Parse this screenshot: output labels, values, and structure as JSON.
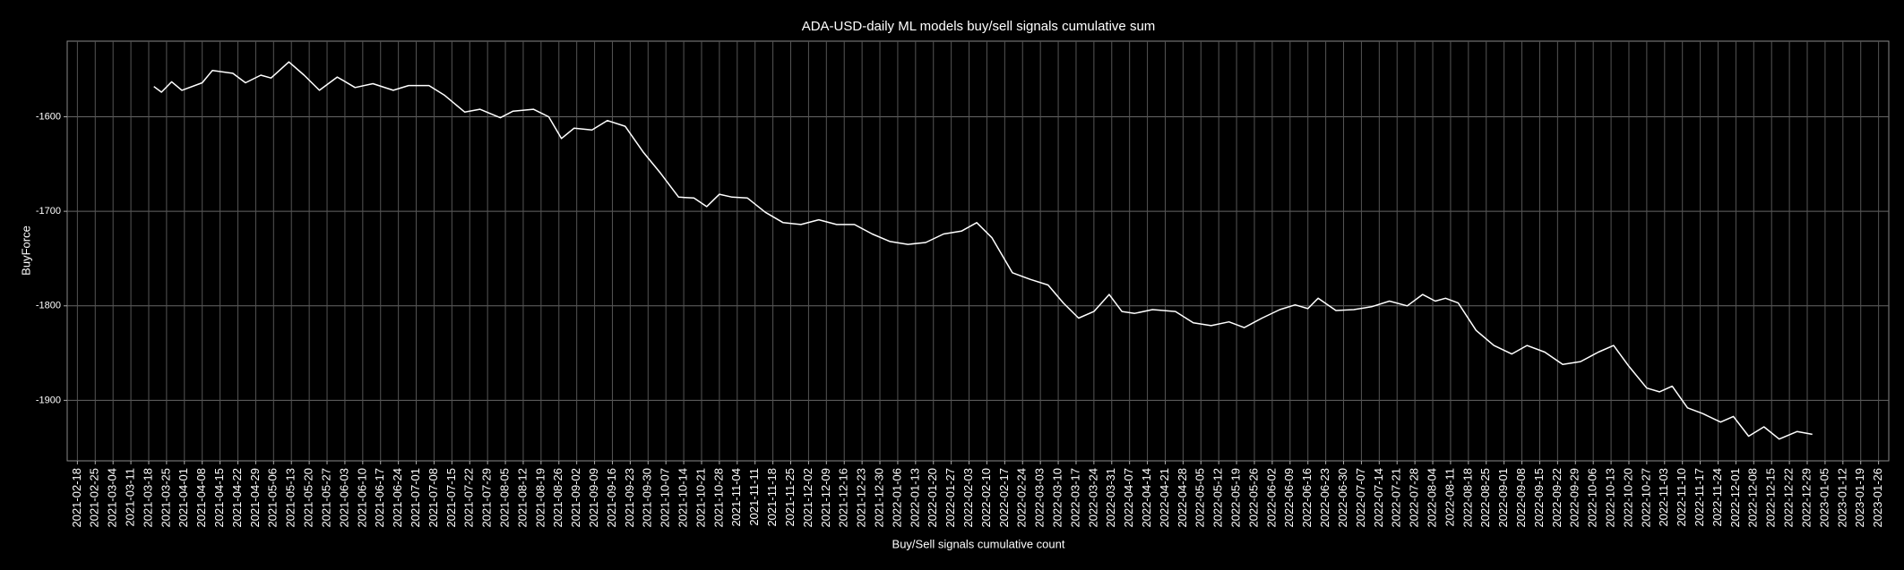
{
  "chart_data": {
    "type": "line",
    "title": "ADA-USD-daily ML models buy/sell signals cumulative sum",
    "x_label": "Buy/Sell signals cumulative count",
    "y_label": "BuyForce",
    "grid": true,
    "xlim": [
      "2021-02-14",
      "2023-01-30"
    ],
    "ylim": [
      -1964,
      -1520
    ],
    "yticks": [
      -1600,
      -1700,
      -1800,
      -1900
    ],
    "xticks": [
      "2021-02-18",
      "2021-02-25",
      "2021-03-04",
      "2021-03-11",
      "2021-03-18",
      "2021-03-25",
      "2021-04-01",
      "2021-04-08",
      "2021-04-15",
      "2021-04-22",
      "2021-04-29",
      "2021-05-06",
      "2021-05-13",
      "2021-05-20",
      "2021-05-27",
      "2021-06-03",
      "2021-06-10",
      "2021-06-17",
      "2021-06-24",
      "2021-07-01",
      "2021-07-08",
      "2021-07-15",
      "2021-07-22",
      "2021-07-29",
      "2021-08-05",
      "2021-08-12",
      "2021-08-19",
      "2021-08-26",
      "2021-09-02",
      "2021-09-09",
      "2021-09-16",
      "2021-09-23",
      "2021-09-30",
      "2021-10-07",
      "2021-10-14",
      "2021-10-21",
      "2021-10-28",
      "2021-11-04",
      "2021-11-11",
      "2021-11-18",
      "2021-11-25",
      "2021-12-02",
      "2021-12-09",
      "2021-12-16",
      "2021-12-23",
      "2021-12-30",
      "2022-01-06",
      "2022-01-13",
      "2022-01-20",
      "2022-01-27",
      "2022-02-03",
      "2022-02-10",
      "2022-02-17",
      "2022-02-24",
      "2022-03-03",
      "2022-03-10",
      "2022-03-17",
      "2022-03-24",
      "2022-03-31",
      "2022-04-07",
      "2022-04-14",
      "2022-04-21",
      "2022-04-28",
      "2022-05-05",
      "2022-05-12",
      "2022-05-19",
      "2022-05-26",
      "2022-06-02",
      "2022-06-09",
      "2022-06-16",
      "2022-06-23",
      "2022-06-30",
      "2022-07-07",
      "2022-07-14",
      "2022-07-21",
      "2022-07-28",
      "2022-08-04",
      "2022-08-11",
      "2022-08-18",
      "2022-08-25",
      "2022-09-01",
      "2022-09-08",
      "2022-09-15",
      "2022-09-22",
      "2022-09-29",
      "2022-10-06",
      "2022-10-13",
      "2022-10-20",
      "2022-10-27",
      "2022-11-03",
      "2022-11-10",
      "2022-11-17",
      "2022-11-24",
      "2022-12-01",
      "2022-12-08",
      "2022-12-15",
      "2022-12-22",
      "2022-12-29",
      "2023-01-05",
      "2023-01-12",
      "2023-01-19",
      "2023-01-26"
    ],
    "series": [
      {
        "name": "BuyForce",
        "color": "#ffffff",
        "x": [
          "2021-03-20",
          "2021-03-23",
          "2021-03-27",
          "2021-03-31",
          "2021-04-08",
          "2021-04-12",
          "2021-04-20",
          "2021-04-25",
          "2021-05-01",
          "2021-05-05",
          "2021-05-12",
          "2021-05-18",
          "2021-05-24",
          "2021-05-31",
          "2021-06-07",
          "2021-06-14",
          "2021-06-22",
          "2021-06-28",
          "2021-07-06",
          "2021-07-12",
          "2021-07-20",
          "2021-07-26",
          "2021-08-03",
          "2021-08-08",
          "2021-08-16",
          "2021-08-22",
          "2021-08-27",
          "2021-09-01",
          "2021-09-08",
          "2021-09-14",
          "2021-09-21",
          "2021-09-28",
          "2021-10-05",
          "2021-10-12",
          "2021-10-18",
          "2021-10-23",
          "2021-10-28",
          "2021-11-02",
          "2021-11-08",
          "2021-11-15",
          "2021-11-22",
          "2021-11-29",
          "2021-12-06",
          "2021-12-13",
          "2021-12-20",
          "2021-12-27",
          "2022-01-03",
          "2022-01-10",
          "2022-01-17",
          "2022-01-24",
          "2022-01-31",
          "2022-02-06",
          "2022-02-12",
          "2022-02-20",
          "2022-02-27",
          "2022-03-06",
          "2022-03-12",
          "2022-03-18",
          "2022-03-24",
          "2022-03-30",
          "2022-04-04",
          "2022-04-09",
          "2022-04-16",
          "2022-04-25",
          "2022-05-02",
          "2022-05-09",
          "2022-05-16",
          "2022-05-22",
          "2022-05-29",
          "2022-06-05",
          "2022-06-11",
          "2022-06-16",
          "2022-06-20",
          "2022-06-27",
          "2022-07-04",
          "2022-07-11",
          "2022-07-18",
          "2022-07-25",
          "2022-07-31",
          "2022-08-05",
          "2022-08-09",
          "2022-08-14",
          "2022-08-21",
          "2022-08-28",
          "2022-09-04",
          "2022-09-10",
          "2022-09-17",
          "2022-09-24",
          "2022-10-01",
          "2022-10-08",
          "2022-10-14",
          "2022-10-20",
          "2022-10-27",
          "2022-11-01",
          "2022-11-06",
          "2022-11-12",
          "2022-11-18",
          "2022-11-25",
          "2022-11-30",
          "2022-12-06",
          "2022-12-12",
          "2022-12-18",
          "2022-12-25",
          "2022-12-31"
        ],
        "values": [
          -1568,
          -1574,
          -1563,
          -1572,
          -1564,
          -1551,
          -1554,
          -1564,
          -1556,
          -1559,
          -1542,
          -1556,
          -1572,
          -1558,
          -1569,
          -1565,
          -1572,
          -1567,
          -1567,
          -1577,
          -1595,
          -1592,
          -1601,
          -1594,
          -1592,
          -1600,
          -1623,
          -1612,
          -1614,
          -1604,
          -1610,
          -1637,
          -1660,
          -1685,
          -1686,
          -1695,
          -1682,
          -1685,
          -1686,
          -1701,
          -1712,
          -1714,
          -1709,
          -1714,
          -1714,
          -1724,
          -1732,
          -1735,
          -1733,
          -1724,
          -1721,
          -1712,
          -1728,
          -1765,
          -1772,
          -1778,
          -1797,
          -1813,
          -1806,
          -1788,
          -1806,
          -1808,
          -1804,
          -1806,
          -1818,
          -1821,
          -1817,
          -1823,
          -1813,
          -1804,
          -1799,
          -1803,
          -1792,
          -1805,
          -1804,
          -1801,
          -1795,
          -1800,
          -1788,
          -1795,
          -1792,
          -1797,
          -1826,
          -1842,
          -1851,
          -1842,
          -1849,
          -1862,
          -1859,
          -1849,
          -1842,
          -1864,
          -1887,
          -1891,
          -1885,
          -1908,
          -1914,
          -1923,
          -1917,
          -1938,
          -1928,
          -1941,
          -1933,
          -1936
        ]
      }
    ]
  }
}
